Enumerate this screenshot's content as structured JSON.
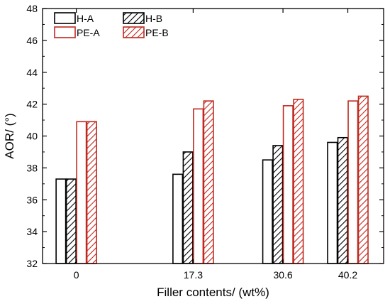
{
  "chart_data": {
    "type": "bar",
    "xlabel": "Filler contents/ (wt%)",
    "ylabel": "AOR/ (°)",
    "categories": [
      "0",
      "17.3",
      "30.6",
      "40.2"
    ],
    "x_positions": [
      0,
      17.3,
      30.6,
      40.2
    ],
    "xlim": [
      -5,
      45.5
    ],
    "ylim": [
      32,
      48
    ],
    "yticks": [
      32,
      34,
      36,
      38,
      40,
      42,
      44,
      46,
      48
    ],
    "grid": false,
    "legend_position": "top-left",
    "series": [
      {
        "name": "H-A",
        "values": [
          37.3,
          37.6,
          38.5,
          39.6
        ],
        "edge": "#000000",
        "fill": "#ffffff",
        "hatch": false
      },
      {
        "name": "H-B",
        "values": [
          37.3,
          39.0,
          39.4,
          39.9
        ],
        "edge": "#000000",
        "fill": "#ffffff",
        "hatch": true
      },
      {
        "name": "PE-A",
        "values": [
          40.9,
          41.7,
          41.9,
          42.2
        ],
        "edge": "#c0281e",
        "fill": "#ffffff",
        "hatch": false
      },
      {
        "name": "PE-B",
        "values": [
          40.9,
          42.2,
          42.3,
          42.5
        ],
        "edge": "#c0281e",
        "fill": "#ffffff",
        "hatch": true
      }
    ]
  }
}
